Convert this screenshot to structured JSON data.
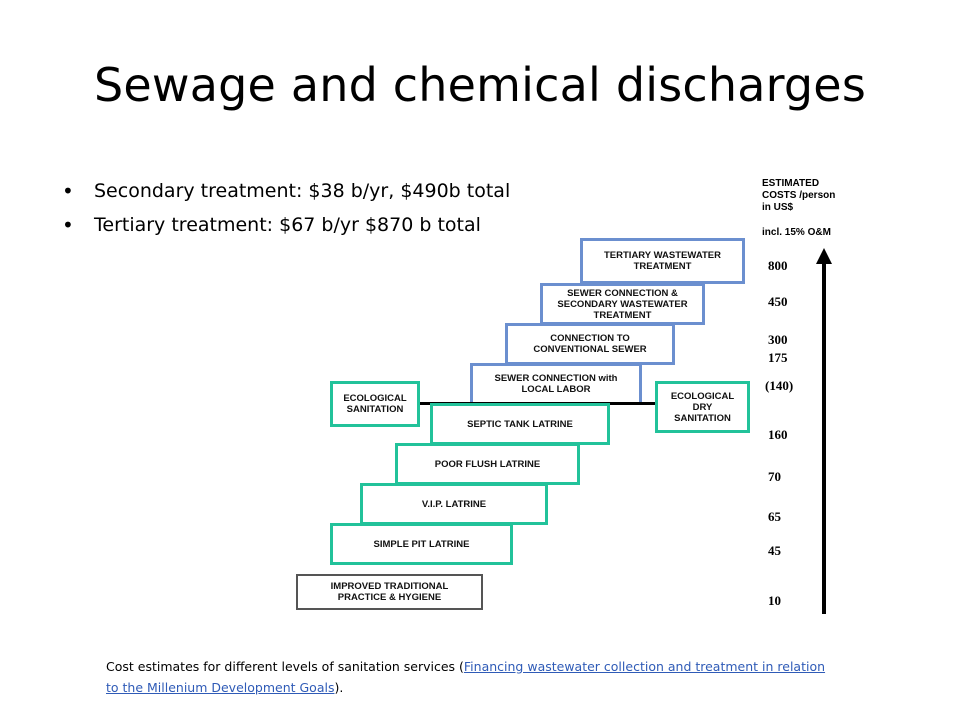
{
  "slide": {
    "title": "Sewage and chemical discharges",
    "bullets": [
      "Secondary treatment: $38 b/yr,  $490b total",
      "Tertiary treatment: $67 b/yr $870 b total"
    ]
  },
  "diagram": {
    "costs_header": "ESTIMATED\nCOSTS /person\nin US$",
    "costs_note": "incl. 15% O&M",
    "steps": [
      {
        "label": "TERTIARY WASTEWATER\nTREATMENT",
        "cost": "800",
        "color": "#6b8fcf"
      },
      {
        "label": "SEWER CONNECTION &\nSECONDARY WASTEWATER\nTREATMENT",
        "cost": "450",
        "color": "#6b8fcf"
      },
      {
        "label": "CONNECTION TO\nCONVENTIONAL SEWER",
        "cost": "300",
        "color": "#6b8fcf"
      },
      {
        "label": "SEWER CONNECTION with\nLOCAL LABOR",
        "cost": "175",
        "color": "#6b8fcf"
      },
      {
        "label": "SEPTIC TANK LATRINE",
        "cost": "160",
        "color": "#22c29a"
      },
      {
        "label": "POOR FLUSH LATRINE",
        "cost": "70",
        "color": "#22c29a"
      },
      {
        "label": "V.I.P. LATRINE",
        "cost": "65",
        "color": "#22c29a"
      },
      {
        "label": "SIMPLE PIT LATRINE",
        "cost": "45",
        "color": "#22c29a"
      },
      {
        "label": "IMPROVED TRADITIONAL\nPRACTICE & HYGIENE",
        "cost": "10",
        "color": "#555555"
      }
    ],
    "side_boxes": {
      "left": "ECOLOGICAL\nSANITATION",
      "right": "ECOLOGICAL\nDRY\nSANITATION",
      "right_cost": "(140)"
    }
  },
  "caption": {
    "prefix": "Cost estimates for different levels of sanitation services (",
    "link_text": "Financing wastewater collection and treatment in relation to the Millenium Development Goals",
    "suffix": ")."
  }
}
